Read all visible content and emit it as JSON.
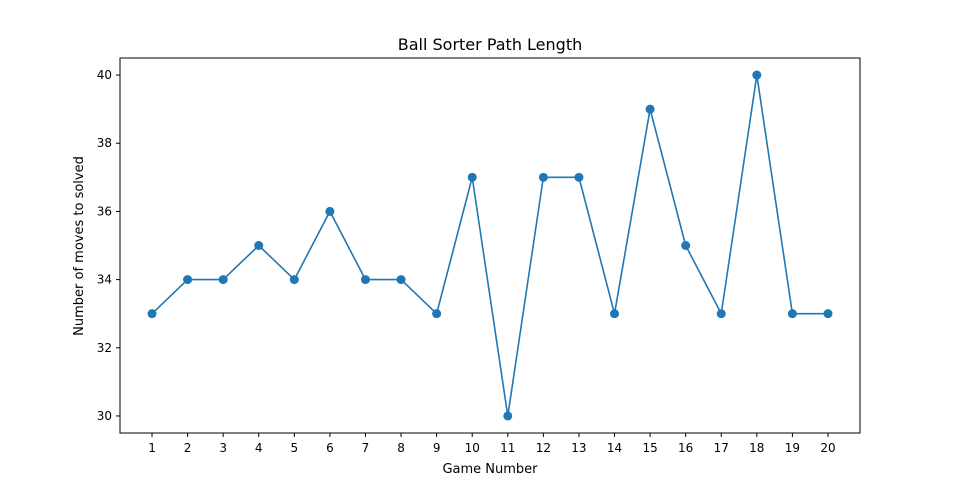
{
  "chart_data": {
    "type": "line",
    "title": "Ball Sorter Path Length",
    "xlabel": "Game Number",
    "ylabel": "Number of moves to solved",
    "x": [
      1,
      2,
      3,
      4,
      5,
      6,
      7,
      8,
      9,
      10,
      11,
      12,
      13,
      14,
      15,
      16,
      17,
      18,
      19,
      20
    ],
    "series": [
      {
        "values": [
          33,
          34,
          34,
          35,
          34,
          36,
          34,
          34,
          33,
          37,
          30,
          37,
          37,
          33,
          39,
          35,
          33,
          40,
          33,
          33
        ],
        "color": "#1f77b4",
        "marker": "circle"
      }
    ],
    "xlim": [
      0.1,
      20.9
    ],
    "ylim": [
      29.5,
      40.5
    ],
    "xticks": [
      1,
      2,
      3,
      4,
      5,
      6,
      7,
      8,
      9,
      10,
      11,
      12,
      13,
      14,
      15,
      16,
      17,
      18,
      19,
      20
    ],
    "yticks": [
      30,
      32,
      34,
      36,
      38,
      40
    ],
    "grid": false,
    "legend": false
  }
}
